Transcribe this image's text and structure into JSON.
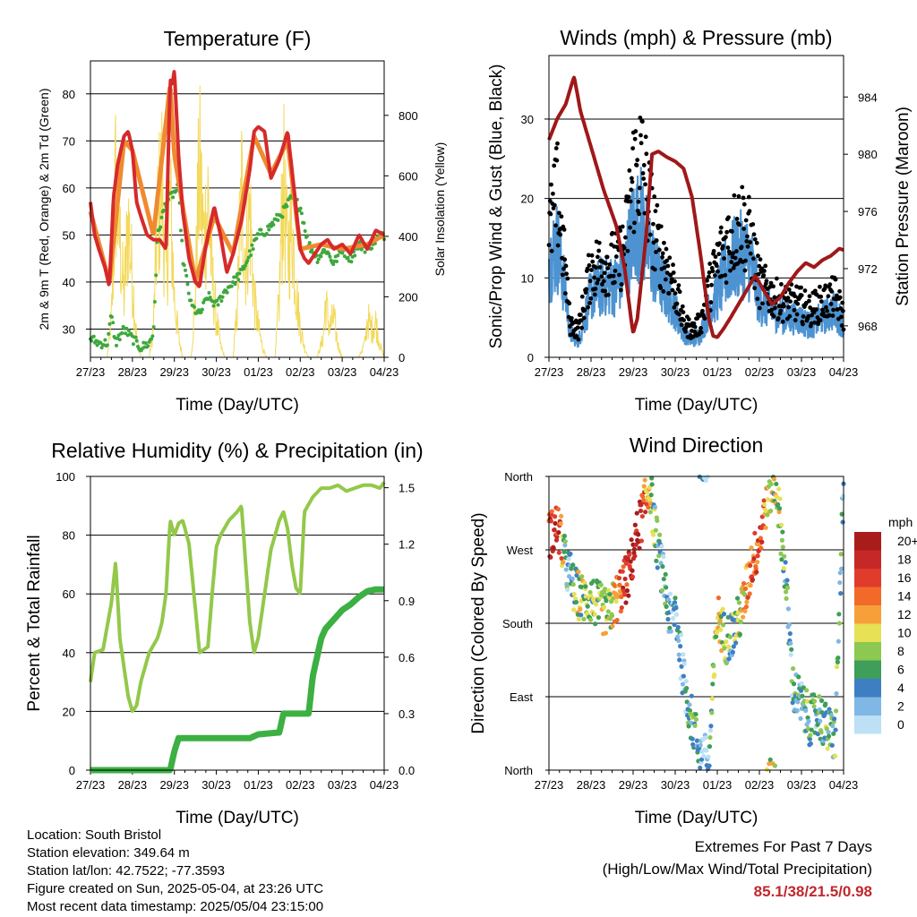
{
  "panels": {
    "temperature": {
      "title": "Temperature (F)",
      "ylabel_left": "2m & 9m T (Red, Orange) & 2m Td (Green)",
      "ylabel_right": "Solar Insolation (Yellow)",
      "xlabel": "Time (Day/UTC)"
    },
    "winds": {
      "title": "Winds (mph) & Pressure (mb)",
      "ylabel_left": "Sonic/Prop Wind & Gust (Blue, Black)",
      "ylabel_right": "Station Pressure (Maroon)",
      "xlabel": "Time (Day/UTC)"
    },
    "humidity": {
      "title": "Relative Humidity (%) & Precipitation (in)",
      "ylabel_left": "Percent & Total Rainfall",
      "xlabel": "Time (Day/UTC)"
    },
    "direction": {
      "title": "Wind Direction",
      "ylabel_left": "Direction (Colored By Speed)",
      "xlabel": "Time (Day/UTC)",
      "legend_title": "mph"
    }
  },
  "info": {
    "location": "Location: South Bristol",
    "elevation": "Station elevation: 349.64 m",
    "latlon": "Station lat/lon: 42.7522; -77.3593",
    "created": "Figure created on Sun, 2025-05-04, at 23:26 UTC",
    "recent": "Most recent data timestamp: 2025/05/04 23:15:00"
  },
  "extremes": {
    "line1": "Extremes For Past 7 Days",
    "line2": "(High/Low/Max Wind/Total Precipitation)",
    "values": "85.1/38/21.5/0.98"
  },
  "colors": {
    "temp2m": "#d62a2a",
    "temp9m": "#f08a30",
    "dewpoint": "#3ea83e",
    "solar": "#f3d95a",
    "wind": "#4d93d1",
    "gust": "#000000",
    "pressure": "#a01818",
    "rh": "#93c84a",
    "precip": "#3cb042"
  },
  "chart_data": [
    {
      "type": "line",
      "panel": "temperature",
      "x_ticks": [
        "27/23",
        "28/23",
        "29/23",
        "30/23",
        "01/23",
        "02/23",
        "03/23",
        "04/23"
      ],
      "ylim_left": [
        24,
        87
      ],
      "y_ticks_left": [
        30,
        40,
        50,
        60,
        70,
        80
      ],
      "ylim_right": [
        0,
        980
      ],
      "y_ticks_right": [
        0,
        200,
        400,
        600,
        800
      ],
      "series": [
        {
          "name": "2m T",
          "axis": "left",
          "x": [
            0,
            0.1,
            0.2,
            0.35,
            0.45,
            0.55,
            0.65,
            0.8,
            0.9,
            1.0,
            1.1,
            1.2,
            1.35,
            1.5,
            1.65,
            1.8,
            1.9,
            1.95,
            2.0,
            2.1,
            2.2,
            2.35,
            2.5,
            2.6,
            2.7,
            2.8,
            2.95,
            3.1,
            3.25,
            3.4,
            3.6,
            3.8,
            3.9,
            4.0,
            4.15,
            4.3,
            4.5,
            4.7,
            4.85,
            5.0,
            5.1,
            5.2,
            5.35,
            5.5,
            5.65,
            5.8,
            6.0,
            6.2,
            6.4,
            6.6,
            6.8,
            7.0
          ],
          "y": [
            57,
            50,
            47,
            43,
            39,
            58,
            65,
            71,
            72,
            68,
            57,
            54,
            50,
            49,
            49,
            47,
            83,
            82,
            85,
            67,
            55,
            45,
            40,
            39,
            45,
            50,
            56,
            50,
            42,
            46,
            53,
            64,
            72,
            73,
            72,
            62,
            66,
            72,
            60,
            47,
            45,
            44,
            46,
            48,
            49,
            47,
            48,
            46,
            50,
            47,
            51,
            50
          ]
        },
        {
          "name": "9m T",
          "axis": "left",
          "x": [
            0,
            0.45,
            0.8,
            1.0,
            1.5,
            1.9,
            2.0,
            2.2,
            2.5,
            2.95,
            3.4,
            3.9,
            4.3,
            4.7,
            5.0,
            5.5,
            6.0,
            6.6,
            7.0
          ],
          "y": [
            55,
            40,
            70,
            68,
            50,
            82,
            67,
            56,
            40,
            54,
            46,
            71,
            63,
            70,
            47,
            48,
            47,
            48,
            50
          ]
        },
        {
          "name": "2m Td",
          "axis": "left",
          "x": [
            0,
            0.2,
            0.4,
            0.5,
            0.6,
            0.8,
            1.0,
            1.2,
            1.4,
            1.5,
            1.6,
            1.8,
            2.0,
            2.1,
            2.2,
            2.4,
            2.6,
            2.8,
            3.0,
            3.2,
            3.4,
            3.6,
            3.8,
            4.0,
            4.2,
            4.4,
            4.6,
            4.8,
            5.0,
            5.2,
            5.4,
            5.6,
            5.8,
            6.0,
            6.2,
            6.4,
            6.6,
            6.8,
            7.0
          ],
          "y": [
            28,
            27,
            27,
            33,
            27,
            30,
            28,
            26,
            27,
            29,
            50,
            57,
            59,
            60,
            45,
            35,
            33,
            37,
            35,
            38,
            40,
            42,
            46,
            50,
            51,
            53,
            55,
            58,
            56,
            48,
            45,
            47,
            44,
            47,
            45,
            48,
            47,
            49,
            50
          ]
        },
        {
          "name": "Solar",
          "axis": "right",
          "x": [
            0,
            0.4,
            0.5,
            0.55,
            0.6,
            0.7,
            0.8,
            0.9,
            1.0,
            1.1,
            1.2,
            1.4,
            1.5,
            1.55,
            1.6,
            1.7,
            1.8,
            1.9,
            2.0,
            2.1,
            2.2,
            2.4,
            2.5,
            2.55,
            2.6,
            2.7,
            2.8,
            2.9,
            3.0,
            3.1,
            3.2,
            3.4,
            3.5,
            3.55,
            3.6,
            3.7,
            3.8,
            3.9,
            4.0,
            4.1,
            4.2,
            4.4,
            4.5,
            4.55,
            4.6,
            4.7,
            4.8,
            4.9,
            5.0,
            5.1,
            5.2,
            5.4,
            5.55,
            5.6,
            5.7,
            5.8,
            5.9,
            6.0,
            6.1,
            6.2,
            6.4,
            6.55,
            6.6,
            6.7,
            6.8,
            6.9,
            7.0
          ],
          "y": [
            0,
            0,
            200,
            500,
            900,
            600,
            300,
            700,
            400,
            100,
            0,
            0,
            150,
            450,
            700,
            900,
            400,
            800,
            300,
            100,
            0,
            0,
            300,
            700,
            950,
            600,
            800,
            400,
            200,
            60,
            0,
            0,
            250,
            600,
            850,
            500,
            750,
            300,
            150,
            50,
            0,
            0,
            300,
            650,
            880,
            500,
            700,
            350,
            150,
            50,
            0,
            0,
            100,
            280,
            150,
            200,
            60,
            0,
            0,
            0,
            0,
            80,
            200,
            140,
            180,
            60,
            0
          ]
        }
      ]
    },
    {
      "type": "line",
      "panel": "winds",
      "x_ticks": [
        "27/23",
        "28/23",
        "29/23",
        "30/23",
        "01/23",
        "02/23",
        "03/23",
        "04/23"
      ],
      "ylim_left": [
        0,
        38
      ],
      "y_ticks_left": [
        0,
        10,
        20,
        30
      ],
      "ylim_right": [
        965.8,
        986.9
      ],
      "y_ticks_right": [
        968,
        972,
        976,
        980,
        984
      ],
      "series": [
        {
          "name": "Wind",
          "axis": "left",
          "x": [
            0,
            0.2,
            0.4,
            0.5,
            0.7,
            1.0,
            1.3,
            1.6,
            1.8,
            2.0,
            2.2,
            2.4,
            2.6,
            2.8,
            3.0,
            3.2,
            3.4,
            3.6,
            3.8,
            4.0,
            4.3,
            4.6,
            4.8,
            5.0,
            5.3,
            5.6,
            5.9,
            6.2,
            6.5,
            6.8,
            7.0
          ],
          "y": [
            12,
            14,
            8,
            3,
            2,
            8,
            9,
            9,
            11,
            16,
            17,
            13,
            10,
            8,
            6,
            3,
            2,
            3,
            6,
            8,
            12,
            13,
            12,
            7,
            6,
            5,
            5,
            4,
            5,
            6,
            4
          ]
        },
        {
          "name": "Gust",
          "axis": "left",
          "x": [
            0,
            0.2,
            0.4,
            0.5,
            0.7,
            1.0,
            1.3,
            1.6,
            1.8,
            2.0,
            2.2,
            2.4,
            2.6,
            2.8,
            3.0,
            3.2,
            3.4,
            3.6,
            3.8,
            4.0,
            4.3,
            4.6,
            4.8,
            5.0,
            5.3,
            5.6,
            5.9,
            6.2,
            6.5,
            6.8,
            7.0
          ],
          "y": [
            18,
            24,
            12,
            5,
            4,
            13,
            14,
            14,
            16,
            27,
            29,
            22,
            16,
            14,
            10,
            5,
            4,
            5,
            10,
            14,
            18,
            20,
            17,
            11,
            9,
            8,
            8,
            7,
            8,
            9,
            6
          ]
        },
        {
          "name": "Pressure",
          "axis": "right",
          "x": [
            0,
            0.2,
            0.4,
            0.55,
            0.6,
            0.75,
            1.0,
            1.3,
            1.6,
            1.8,
            1.95,
            2.0,
            2.1,
            2.3,
            2.45,
            2.6,
            2.8,
            3.0,
            3.2,
            3.4,
            3.6,
            3.8,
            3.9,
            4.0,
            4.15,
            4.3,
            4.5,
            4.7,
            4.9,
            5.1,
            5.3,
            5.5,
            5.7,
            5.9,
            6.1,
            6.3,
            6.5,
            6.7,
            6.9,
            7.0
          ],
          "y": [
            981,
            982.5,
            983.5,
            985,
            985.4,
            983,
            980.5,
            977.5,
            975,
            972,
            968.5,
            967.5,
            968.5,
            974,
            980,
            980.2,
            979.8,
            979.5,
            979,
            977,
            973,
            968.5,
            967.3,
            967.2,
            967.8,
            968.5,
            969.5,
            970.5,
            971.5,
            970.5,
            969.5,
            970,
            971,
            971.8,
            972.4,
            972.1,
            972.6,
            972.9,
            973.4,
            973.3
          ]
        }
      ]
    },
    {
      "type": "line",
      "panel": "humidity",
      "x_ticks": [
        "27/23",
        "28/23",
        "29/23",
        "30/23",
        "01/23",
        "02/23",
        "03/23",
        "04/23"
      ],
      "ylim_left": [
        0,
        100
      ],
      "y_ticks_left": [
        0,
        20,
        40,
        60,
        80,
        100
      ],
      "ylim_right": [
        0,
        1.56
      ],
      "y_ticks_right": [
        "0.0",
        "0.3",
        "0.6",
        "0.9",
        "1.2",
        "1.5"
      ],
      "series": [
        {
          "name": "RH",
          "axis": "left",
          "x": [
            0,
            0.1,
            0.3,
            0.5,
            0.6,
            0.7,
            0.9,
            1.0,
            1.1,
            1.2,
            1.4,
            1.6,
            1.7,
            1.8,
            1.9,
            2.0,
            2.1,
            2.2,
            2.35,
            2.5,
            2.6,
            2.8,
            2.9,
            3.0,
            3.1,
            3.3,
            3.5,
            3.6,
            3.7,
            3.8,
            3.9,
            4.0,
            4.1,
            4.3,
            4.5,
            4.6,
            4.7,
            4.8,
            4.9,
            5.0,
            5.1,
            5.3,
            5.5,
            5.7,
            5.9,
            6.1,
            6.3,
            6.5,
            6.7,
            6.9,
            7.0
          ],
          "y": [
            30,
            40,
            41,
            57,
            71,
            45,
            25,
            20,
            22,
            30,
            40,
            45,
            50,
            60,
            85,
            80,
            84,
            85,
            77,
            55,
            40,
            42,
            60,
            76,
            80,
            85,
            88,
            90,
            70,
            50,
            40,
            45,
            55,
            75,
            85,
            88,
            82,
            70,
            62,
            60,
            88,
            93,
            96,
            96,
            97,
            95,
            96,
            97,
            97,
            96,
            98
          ]
        },
        {
          "name": "Precip",
          "axis": "right",
          "x": [
            0,
            1.9,
            2.0,
            2.1,
            3.0,
            3.8,
            4.0,
            4.5,
            4.6,
            5.2,
            5.3,
            5.5,
            5.6,
            5.8,
            6.0,
            6.2,
            6.4,
            6.6,
            6.8,
            7.0
          ],
          "y": [
            0,
            0,
            0.1,
            0.17,
            0.17,
            0.17,
            0.19,
            0.2,
            0.3,
            0.3,
            0.5,
            0.7,
            0.75,
            0.8,
            0.85,
            0.88,
            0.92,
            0.95,
            0.96,
            0.96
          ]
        }
      ]
    },
    {
      "type": "scatter",
      "panel": "direction",
      "x_ticks": [
        "27/23",
        "28/23",
        "29/23",
        "30/23",
        "01/23",
        "02/23",
        "03/23",
        "04/23"
      ],
      "y_ticks": [
        "North",
        "East",
        "South",
        "West",
        "North"
      ],
      "legend_labels": [
        "20+",
        "18",
        "16",
        "14",
        "12",
        "10",
        "8",
        "6",
        "4",
        "2",
        "0"
      ],
      "legend_colors": [
        "#a81c1c",
        "#c62828",
        "#e03c2c",
        "#f26a2a",
        "#f7a03a",
        "#e6e155",
        "#8cc852",
        "#3e9e5a",
        "#3e7fc4",
        "#7fb8e4",
        "#bde0f5"
      ],
      "x": [
        0.1,
        0.2,
        0.3,
        0.4,
        0.5,
        0.6,
        0.8,
        1.0,
        1.2,
        1.4,
        1.5,
        1.6,
        1.7,
        1.8,
        1.9,
        2.1,
        2.3,
        2.4,
        2.5,
        2.7,
        2.9,
        3.0,
        3.2,
        3.4,
        3.6,
        3.8,
        4.0,
        4.2,
        4.4,
        4.6,
        4.8,
        5.0,
        5.2,
        5.4,
        5.6,
        5.8,
        6.0,
        6.2,
        6.4,
        6.6,
        6.8,
        7.0
      ],
      "dir": [
        290,
        300,
        280,
        250,
        240,
        220,
        210,
        210,
        200,
        190,
        200,
        210,
        220,
        230,
        240,
        290,
        330,
        350,
        300,
        240,
        180,
        200,
        110,
        60,
        20,
        10,
        190,
        160,
        170,
        200,
        250,
        280,
        340,
        350,
        250,
        100,
        80,
        60,
        70,
        50,
        40,
        350
      ],
      "speed": [
        16,
        18,
        14,
        4,
        2,
        8,
        8,
        6,
        8,
        10,
        10,
        12,
        14,
        16,
        18,
        20,
        14,
        10,
        6,
        4,
        2,
        2,
        4,
        6,
        2,
        2,
        12,
        6,
        6,
        10,
        14,
        16,
        10,
        8,
        6,
        4,
        4,
        6,
        4,
        6,
        6,
        4
      ]
    }
  ]
}
